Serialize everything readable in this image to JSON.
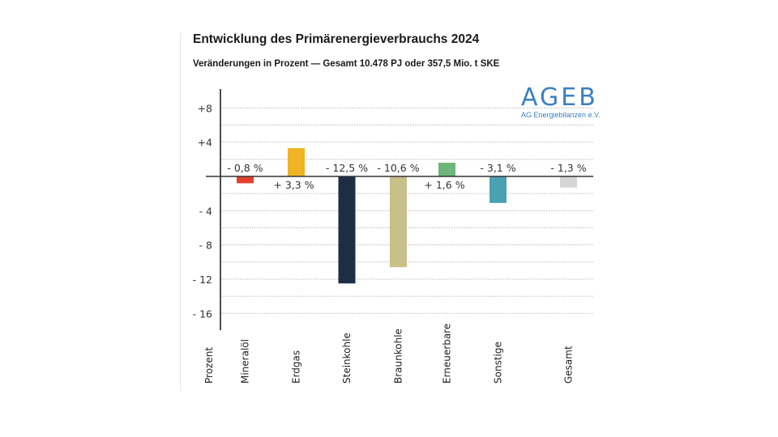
{
  "title": "Entwicklung des Primärenergieverbrauchs 2024",
  "subtitle": "Veränderungen in Prozent — Gesamt 10.478 PJ oder 357,5 Mio. t SKE",
  "logo": {
    "main": "AGEB",
    "sub": "AG Energiebilanzen e.V.",
    "color": "#3a7fc1"
  },
  "chart_data": {
    "type": "bar",
    "title": "Entwicklung des Primärenergieverbrauchs 2024",
    "subtitle": "Veränderungen in Prozent — Gesamt 10.478 PJ oder 357,5 Mio. t SKE",
    "xlabel": "",
    "ylabel": "Prozent",
    "ylim": [
      -18,
      10
    ],
    "yticks": [
      8,
      4,
      -4,
      -8,
      -12,
      -16
    ],
    "ytick_labels": [
      "+8",
      "+4",
      "- 4",
      "- 8",
      "- 12",
      "- 16"
    ],
    "grid": true,
    "grid_step": 2,
    "categories": [
      "Mineralöl",
      "Erdgas",
      "Steinkohle",
      "Braunkohle",
      "Erneuerbare",
      "Sonstige",
      "Gesamt"
    ],
    "values": [
      -0.8,
      3.3,
      -12.5,
      -10.6,
      1.6,
      -3.1,
      -1.3
    ],
    "value_labels": [
      "- 0,8 %",
      "+ 3,3 %",
      "- 12,5 %",
      "- 10,6 %",
      "+ 1,6 %",
      "- 3,1 %",
      "- 1,3 %"
    ],
    "colors": [
      "#e2412e",
      "#f0b323",
      "#1d2e45",
      "#c7c088",
      "#6db57a",
      "#4aa1b0",
      "#d6d6d6"
    ]
  }
}
